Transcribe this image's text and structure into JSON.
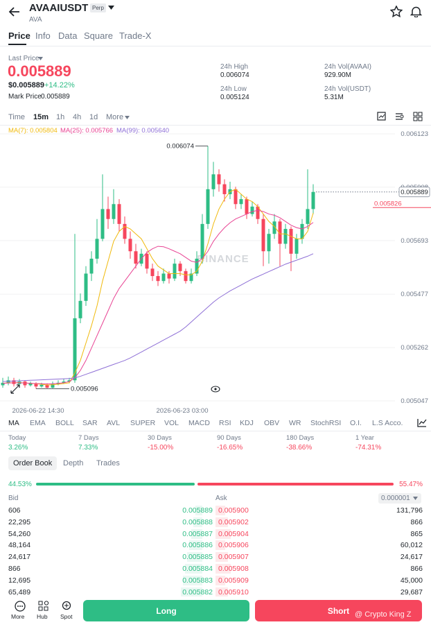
{
  "header": {
    "title": "AVAAIUSDT",
    "badge": "Perp",
    "subtitle": "AVA"
  },
  "tabs": [
    "Price",
    "Info",
    "Data",
    "Square",
    "Trade-X"
  ],
  "ticker": {
    "last_price_label": "Last Price",
    "last_price": "0.005889",
    "usd_price": "$0.005889",
    "change": "+14.22%",
    "mark_price_label": "Mark Price",
    "mark_price": "0.005889",
    "stats": [
      {
        "label": "24h High",
        "value": "0.006074"
      },
      {
        "label": "24h Vol(AVAAI)",
        "value": "929.90M"
      },
      {
        "label": "24h Low",
        "value": "0.005124"
      },
      {
        "label": "24h Vol(USDT)",
        "value": "5.31M"
      }
    ]
  },
  "intervals": [
    "Time",
    "15m",
    "1h",
    "4h",
    "1d",
    "More"
  ],
  "chart_data": {
    "type": "candlestick",
    "categories": [
      null,
      null,
      null,
      null,
      null,
      null,
      "2026-06-22 14:30",
      null,
      null,
      null,
      null,
      null,
      null,
      null,
      null,
      null,
      null,
      null,
      null,
      null,
      null,
      null,
      null,
      null,
      null,
      null,
      null,
      null,
      null,
      null,
      null,
      null,
      "2026-06-23 03:00",
      null,
      null,
      null,
      null,
      null,
      null,
      null,
      null,
      null,
      null,
      null,
      null,
      null,
      null,
      null,
      null,
      null,
      null,
      null,
      null,
      null,
      null,
      null,
      null
    ],
    "candles": [
      [
        0.00511,
        0.00514,
        0.0051,
        0.00512
      ],
      [
        0.00512,
        0.005145,
        0.00511,
        0.00513
      ],
      [
        0.00513,
        0.00514,
        0.005105,
        0.005115
      ],
      [
        0.005115,
        0.005135,
        0.00511,
        0.005125
      ],
      [
        0.005125,
        0.00513,
        0.0051,
        0.00511
      ],
      [
        0.00511,
        0.005125,
        0.005105,
        0.005118
      ],
      [
        0.005118,
        0.005122,
        0.005096,
        0.005105
      ],
      [
        0.005105,
        0.00512,
        0.0051,
        0.005112
      ],
      [
        0.005112,
        0.005118,
        0.005098,
        0.0051
      ],
      [
        0.0051,
        0.005125,
        0.005098,
        0.005115
      ],
      [
        0.005115,
        0.00513,
        0.00511,
        0.00512
      ],
      [
        0.00512,
        0.005135,
        0.005115,
        0.005125
      ],
      [
        0.005125,
        0.00514,
        0.005118,
        0.00513
      ],
      [
        0.00513,
        0.00572,
        0.00512,
        0.00538
      ],
      [
        0.00538,
        0.00548,
        0.00536,
        0.00545
      ],
      [
        0.00545,
        0.00559,
        0.00543,
        0.00556
      ],
      [
        0.00556,
        0.00565,
        0.00553,
        0.00562
      ],
      [
        0.00562,
        0.00578,
        0.0056,
        0.0057
      ],
      [
        0.0057,
        0.00596,
        0.00569,
        0.00582
      ],
      [
        0.00582,
        0.00587,
        0.00574,
        0.00578
      ],
      [
        0.00578,
        0.0059,
        0.00576,
        0.00584
      ],
      [
        0.00584,
        0.00586,
        0.00573,
        0.00576
      ],
      [
        0.00576,
        0.00579,
        0.00568,
        0.0057
      ],
      [
        0.0057,
        0.00573,
        0.00562,
        0.00565
      ],
      [
        0.00565,
        0.00568,
        0.00558,
        0.0056
      ],
      [
        0.0056,
        0.00566,
        0.00559,
        0.00564
      ],
      [
        0.00564,
        0.00565,
        0.00556,
        0.00558
      ],
      [
        0.00558,
        0.0056,
        0.00553,
        0.00555
      ],
      [
        0.00555,
        0.00557,
        0.00551,
        0.00553
      ],
      [
        0.00553,
        0.00558,
        0.00552,
        0.00556
      ],
      [
        0.00556,
        0.00557,
        0.00552,
        0.00554
      ],
      [
        0.00554,
        0.00562,
        0.00553,
        0.0056
      ],
      [
        0.0056,
        0.00561,
        0.00555,
        0.00557
      ],
      [
        0.00557,
        0.00558,
        0.00552,
        0.00553
      ],
      [
        0.00553,
        0.00558,
        0.00552,
        0.00556
      ],
      [
        0.00556,
        0.00565,
        0.00555,
        0.00562
      ],
      [
        0.00562,
        0.0058,
        0.0056,
        0.00576
      ],
      [
        0.00576,
        0.006074,
        0.00574,
        0.0059
      ],
      [
        0.0059,
        0.00601,
        0.00587,
        0.00596
      ],
      [
        0.00596,
        0.00598,
        0.00589,
        0.00592
      ],
      [
        0.00592,
        0.00594,
        0.00585,
        0.00588
      ],
      [
        0.00588,
        0.00593,
        0.00586,
        0.0059
      ],
      [
        0.0059,
        0.00591,
        0.00582,
        0.00584
      ],
      [
        0.00584,
        0.00588,
        0.00582,
        0.00586
      ],
      [
        0.00586,
        0.00587,
        0.00578,
        0.0058
      ],
      [
        0.0058,
        0.00585,
        0.00579,
        0.00583
      ],
      [
        0.00583,
        0.00584,
        0.00576,
        0.00578
      ],
      [
        0.00578,
        0.0058,
        0.00559,
        0.00565
      ],
      [
        0.00565,
        0.00574,
        0.0056,
        0.00572
      ],
      [
        0.00572,
        0.0058,
        0.0057,
        0.00577
      ],
      [
        0.00577,
        0.00578,
        0.00559,
        0.00568
      ],
      [
        0.00568,
        0.00576,
        0.00566,
        0.00574
      ],
      [
        0.00574,
        0.00575,
        0.00557,
        0.00564
      ],
      [
        0.00564,
        0.00572,
        0.00562,
        0.0057
      ],
      [
        0.0057,
        0.00578,
        0.00568,
        0.00576
      ],
      [
        0.00576,
        0.00598,
        0.00574,
        0.00582
      ],
      [
        0.00582,
        0.00592,
        0.0058,
        0.005889
      ]
    ],
    "up_color": "#2ebd85",
    "down_color": "#f6465d",
    "series": [
      {
        "name": "MA(7): 0.005804",
        "color": "#f0b90b",
        "values": [
          0.005118,
          0.00512,
          0.00512,
          0.005121,
          0.005119,
          0.005118,
          0.005116,
          0.005114,
          0.005111,
          0.005112,
          0.005114,
          0.005117,
          0.00512,
          0.00516,
          0.00521,
          0.00528,
          0.00535,
          0.00543,
          0.00553,
          0.00561,
          0.00569,
          0.00573,
          0.00575,
          0.00574,
          0.00572,
          0.0057,
          0.00566,
          0.00562,
          0.00559,
          0.005575,
          0.00556,
          0.00556,
          0.00556,
          0.005555,
          0.005555,
          0.00557,
          0.00561,
          0.00568,
          0.00576,
          0.00582,
          0.00586,
          0.00589,
          0.0059,
          0.00588,
          0.00586,
          0.00585,
          0.00583,
          0.0058,
          0.00577,
          0.00575,
          0.00572,
          0.00572,
          0.00571,
          0.0057,
          0.0057,
          0.00573,
          0.005804
        ]
      },
      {
        "name": "MA(25): 0.005766",
        "color": "#e84393",
        "values": [
          0.005118,
          0.005119,
          0.00512,
          0.00512,
          0.005119,
          0.005118,
          0.005117,
          0.005116,
          0.005115,
          0.005116,
          0.005118,
          0.00512,
          0.005125,
          0.00514,
          0.00517,
          0.00521,
          0.00526,
          0.00531,
          0.00536,
          0.00541,
          0.00546,
          0.0055,
          0.00553,
          0.00556,
          0.00559,
          0.00562,
          0.005645,
          0.00566,
          0.00567,
          0.005668,
          0.00566,
          0.00565,
          0.00564,
          0.005625,
          0.00561,
          0.005605,
          0.00562,
          0.00565,
          0.00569,
          0.00572,
          0.005745,
          0.005765,
          0.00578,
          0.00579,
          0.0058,
          0.00581,
          0.005815,
          0.00581,
          0.0058,
          0.005795,
          0.005785,
          0.00577,
          0.005755,
          0.005745,
          0.00574,
          0.00575,
          0.005766
        ]
      },
      {
        "name": "MA(99): 0.005640",
        "color": "#8e6fd6",
        "values": [
          0.005125,
          0.005126,
          0.005127,
          0.005128,
          0.005129,
          0.00513,
          0.005131,
          0.005132,
          0.005133,
          0.005134,
          0.005135,
          0.005136,
          0.005137,
          0.00514,
          0.005146,
          0.005154,
          0.005162,
          0.00517,
          0.005178,
          0.005186,
          0.005194,
          0.005202,
          0.00521,
          0.00522,
          0.005232,
          0.005244,
          0.005256,
          0.005268,
          0.00528,
          0.005292,
          0.005304,
          0.005316,
          0.005328,
          0.005345,
          0.005365,
          0.005385,
          0.005405,
          0.005425,
          0.005445,
          0.005462,
          0.005476,
          0.00549,
          0.005502,
          0.005514,
          0.005526,
          0.005538,
          0.005548,
          0.005558,
          0.005568,
          0.005578,
          0.005588,
          0.005598,
          0.005606,
          0.005614,
          0.005622,
          0.00563,
          0.00564
        ]
      }
    ],
    "ylim": [
      0.005047,
      0.006123
    ],
    "yticks": [
      0.005047,
      0.005262,
      0.005477,
      0.005693,
      0.005908,
      0.006123
    ],
    "grid": true,
    "max_label": 0.006074,
    "min_label": 0.005096,
    "last_price_line": 0.005889,
    "mark_price_line": 0.005826,
    "watermark": "BINANCE"
  },
  "indicators": [
    "MA",
    "EMA",
    "BOLL",
    "SAR",
    "AVL",
    "SUPER",
    "VOL",
    "MACD",
    "RSI",
    "KDJ",
    "OBV",
    "WR",
    "StochRSI",
    "O.I.",
    "L.S Acco."
  ],
  "performance": [
    {
      "label": "Today",
      "value": "3.26%"
    },
    {
      "label": "7 Days",
      "value": "7.33%"
    },
    {
      "label": "30 Days",
      "value": "-15.00%"
    },
    {
      "label": "90 Days",
      "value": "-16.65%"
    },
    {
      "label": "180 Days",
      "value": "-38.66%"
    },
    {
      "label": "1 Year",
      "value": "-74.31%"
    }
  ],
  "book_tabs": [
    "Order Book",
    "Depth",
    "Trades"
  ],
  "ratio": {
    "bid": "44.53%",
    "ask": "55.47%"
  },
  "order_book": {
    "bid_header": "Bid",
    "ask_header": "Ask",
    "precision": "0.000001",
    "rows": [
      [
        "606",
        "0.005889",
        "0.005900",
        "131,796"
      ],
      [
        "22,295",
        "0.005888",
        "0.005902",
        "866"
      ],
      [
        "54,260",
        "0.005887",
        "0.005904",
        "865"
      ],
      [
        "48,164",
        "0.005886",
        "0.005906",
        "60,012"
      ],
      [
        "24,617",
        "0.005885",
        "0.005907",
        "24,617"
      ],
      [
        "866",
        "0.005884",
        "0.005908",
        "866"
      ],
      [
        "12,695",
        "0.005883",
        "0.005909",
        "45,000"
      ],
      [
        "65,489",
        "0.005882",
        "0.005910",
        "29,687"
      ]
    ]
  },
  "footer": {
    "nav": [
      "More",
      "Hub",
      "Spot"
    ],
    "long": "Long",
    "short": "Short",
    "watermark": "@ Crypto King Z"
  }
}
